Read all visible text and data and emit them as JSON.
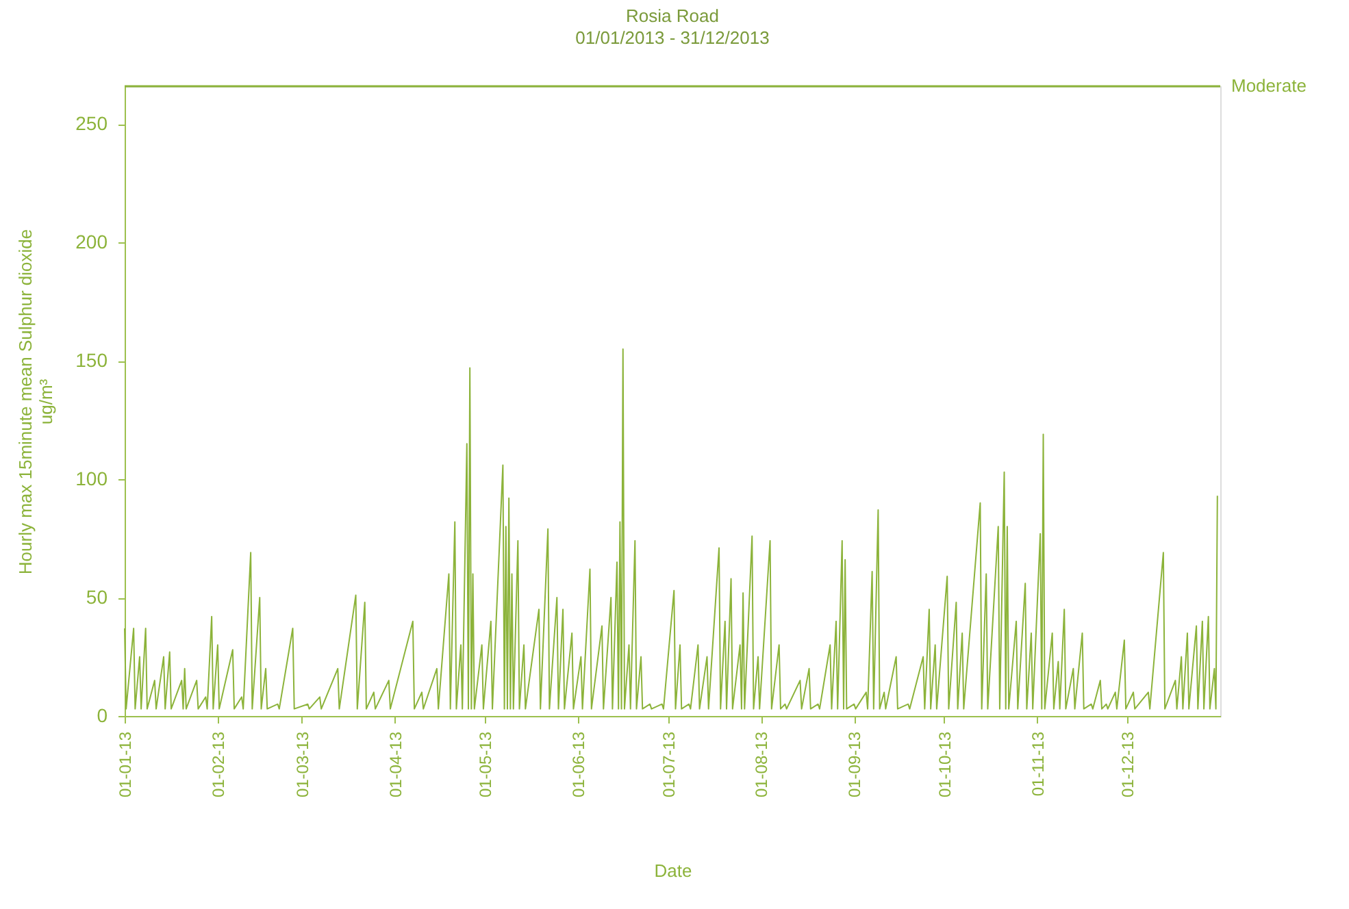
{
  "chart_data": {
    "type": "line",
    "title": "Rosia Road",
    "subtitle": "01/01/2013 - 31/12/2013",
    "xlabel": "Date",
    "ylabel": "Hourly max 15minute mean Sulphur dioxide\nug/m³",
    "xlim": [
      "2013-01-01",
      "2013-12-31T23:00"
    ],
    "ylim": [
      0,
      266
    ],
    "yticks": [
      0,
      50,
      100,
      150,
      200,
      250
    ],
    "xticks": [
      {
        "value": "2013-01-01",
        "label": "01-01-13"
      },
      {
        "value": "2013-02-01",
        "label": "01-02-13"
      },
      {
        "value": "2013-03-01",
        "label": "01-03-13"
      },
      {
        "value": "2013-04-01",
        "label": "01-04-13"
      },
      {
        "value": "2013-05-01",
        "label": "01-05-13"
      },
      {
        "value": "2013-06-01",
        "label": "01-06-13"
      },
      {
        "value": "2013-07-01",
        "label": "01-07-13"
      },
      {
        "value": "2013-08-01",
        "label": "01-08-13"
      },
      {
        "value": "2013-09-01",
        "label": "01-09-13"
      },
      {
        "value": "2013-10-01",
        "label": "01-10-13"
      },
      {
        "value": "2013-11-01",
        "label": "01-11-13"
      },
      {
        "value": "2013-12-01",
        "label": "01-12-13"
      }
    ],
    "grid": false,
    "ref_lines": [
      {
        "axis": "y",
        "value": 266,
        "label": "Moderate",
        "color": "#8cb33a"
      }
    ],
    "x": [
      "2013-01-01",
      "2013-01-01T12:00",
      "2013-01-04",
      "2013-01-04T12:00",
      "2013-01-06",
      "2013-01-06T12:00",
      "2013-01-08",
      "2013-01-08T12:00",
      "2013-01-11",
      "2013-01-11T12:00",
      "2013-01-14",
      "2013-01-14T12:00",
      "2013-01-16",
      "2013-01-16T12:00",
      "2013-01-20",
      "2013-01-20T12:00",
      "2013-01-21",
      "2013-01-21T12:00",
      "2013-01-25",
      "2013-01-25T12:00",
      "2013-01-28",
      "2013-01-28T12:00",
      "2013-01-30",
      "2013-01-30T12:00",
      "2013-02-01",
      "2013-02-01T12:00",
      "2013-02-06",
      "2013-02-06T12:00",
      "2013-02-09",
      "2013-02-09T12:00",
      "2013-02-12",
      "2013-02-12T12:00",
      "2013-02-15",
      "2013-02-15T12:00",
      "2013-02-17",
      "2013-02-17T12:00",
      "2013-02-21",
      "2013-02-21T12:00",
      "2013-02-26",
      "2013-02-26T12:00",
      "2013-03-03",
      "2013-03-03T12:00",
      "2013-03-07",
      "2013-03-07T12:00",
      "2013-03-13",
      "2013-03-13T12:00",
      "2013-03-19",
      "2013-03-19T12:00",
      "2013-03-22",
      "2013-03-22T12:00",
      "2013-03-25",
      "2013-03-25T12:00",
      "2013-03-30",
      "2013-03-30T12:00",
      "2013-04-07",
      "2013-04-07T12:00",
      "2013-04-10",
      "2013-04-10T12:00",
      "2013-04-15",
      "2013-04-15T12:00",
      "2013-04-19",
      "2013-04-19T12:00",
      "2013-04-21",
      "2013-04-21T12:00",
      "2013-04-23",
      "2013-04-23T12:00",
      "2013-04-25",
      "2013-04-25T12:00",
      "2013-04-26",
      "2013-04-26T12:00",
      "2013-04-27",
      "2013-04-27T12:00",
      "2013-04-30",
      "2013-04-30T12:00",
      "2013-05-03",
      "2013-05-03T12:00",
      "2013-05-07",
      "2013-05-07T12:00",
      "2013-05-08",
      "2013-05-08T12:00",
      "2013-05-09",
      "2013-05-09T12:00",
      "2013-05-10",
      "2013-05-10T12:00",
      "2013-05-12",
      "2013-05-12T12:00",
      "2013-05-14",
      "2013-05-14T12:00",
      "2013-05-19",
      "2013-05-19T12:00",
      "2013-05-22",
      "2013-05-22T12:00",
      "2013-05-25",
      "2013-05-25T12:00",
      "2013-05-27",
      "2013-05-27T12:00",
      "2013-05-30",
      "2013-05-30T12:00",
      "2013-06-02",
      "2013-06-02T12:00",
      "2013-06-05",
      "2013-06-05T12:00",
      "2013-06-09",
      "2013-06-09T12:00",
      "2013-06-12",
      "2013-06-12T12:00",
      "2013-06-14",
      "2013-06-14T12:00",
      "2013-06-15",
      "2013-06-15T12:00",
      "2013-06-16",
      "2013-06-16T12:00",
      "2013-06-18",
      "2013-06-18T12:00",
      "2013-06-20",
      "2013-06-20T12:00",
      "2013-06-22",
      "2013-06-22T12:00",
      "2013-06-25",
      "2013-06-25T12:00",
      "2013-06-29",
      "2013-06-29T12:00",
      "2013-07-03",
      "2013-07-03T12:00",
      "2013-07-05",
      "2013-07-05T12:00",
      "2013-07-08",
      "2013-07-08T12:00",
      "2013-07-11",
      "2013-07-11T12:00",
      "2013-07-14",
      "2013-07-14T12:00",
      "2013-07-18",
      "2013-07-18T12:00",
      "2013-07-20",
      "2013-07-20T12:00",
      "2013-07-22",
      "2013-07-22T12:00",
      "2013-07-25",
      "2013-07-25T12:00",
      "2013-07-26",
      "2013-07-26T12:00",
      "2013-07-29",
      "2013-07-29T12:00",
      "2013-07-31",
      "2013-07-31T12:00",
      "2013-08-04",
      "2013-08-04T12:00",
      "2013-08-07",
      "2013-08-07T12:00",
      "2013-08-09",
      "2013-08-09T12:00",
      "2013-08-14",
      "2013-08-14T12:00",
      "2013-08-17",
      "2013-08-17T12:00",
      "2013-08-20",
      "2013-08-20T12:00",
      "2013-08-24",
      "2013-08-24T12:00",
      "2013-08-26",
      "2013-08-26T12:00",
      "2013-08-28",
      "2013-08-28T12:00",
      "2013-08-29",
      "2013-08-29T12:00",
      "2013-09-01",
      "2013-09-01T12:00",
      "2013-09-05",
      "2013-09-05T12:00",
      "2013-09-07",
      "2013-09-07T12:00",
      "2013-09-09",
      "2013-09-09T12:00",
      "2013-09-11",
      "2013-09-11T12:00",
      "2013-09-15",
      "2013-09-15T12:00",
      "2013-09-19",
      "2013-09-19T12:00",
      "2013-09-24",
      "2013-09-24T12:00",
      "2013-09-26",
      "2013-09-26T12:00",
      "2013-09-28",
      "2013-09-28T12:00",
      "2013-10-02",
      "2013-10-02T12:00",
      "2013-10-05",
      "2013-10-05T12:00",
      "2013-10-07",
      "2013-10-07T12:00",
      "2013-10-13",
      "2013-10-13T12:00",
      "2013-10-15",
      "2013-10-15T12:00",
      "2013-10-19",
      "2013-10-19T12:00",
      "2013-10-21",
      "2013-10-21T12:00",
      "2013-10-22",
      "2013-10-22T12:00",
      "2013-10-25",
      "2013-10-25T12:00",
      "2013-10-28",
      "2013-10-28T12:00",
      "2013-10-30",
      "2013-10-30T12:00",
      "2013-11-02",
      "2013-11-02T12:00",
      "2013-11-03",
      "2013-11-03T12:00",
      "2013-11-06",
      "2013-11-06T12:00",
      "2013-11-08",
      "2013-11-08T12:00",
      "2013-11-10",
      "2013-11-10T12:00",
      "2013-11-13",
      "2013-11-13T12:00",
      "2013-11-16",
      "2013-11-16T12:00",
      "2013-11-19",
      "2013-11-19T12:00",
      "2013-11-22",
      "2013-11-22T12:00",
      "2013-11-24",
      "2013-11-24T12:00",
      "2013-11-27",
      "2013-11-27T12:00",
      "2013-11-30",
      "2013-11-30T12:00",
      "2013-12-03",
      "2013-12-03T12:00",
      "2013-12-08",
      "2013-12-08T12:00",
      "2013-12-13",
      "2013-12-13T12:00",
      "2013-12-17",
      "2013-12-17T12:00",
      "2013-12-19",
      "2013-12-19T12:00",
      "2013-12-21",
      "2013-12-21T12:00",
      "2013-12-24",
      "2013-12-24T12:00",
      "2013-12-26",
      "2013-12-26T12:00",
      "2013-12-28",
      "2013-12-28T12:00",
      "2013-12-30",
      "2013-12-30T12:00",
      "2013-12-31"
    ],
    "series": [
      {
        "color": "#8cb33a",
        "values": [
          37,
          3,
          37,
          3,
          25,
          3,
          37,
          3,
          15,
          3,
          25,
          3,
          27,
          3,
          15,
          3,
          20,
          3,
          15,
          3,
          8,
          3,
          42,
          3,
          30,
          3,
          28,
          3,
          8,
          3,
          69,
          3,
          50,
          3,
          20,
          3,
          5,
          3,
          37,
          3,
          5,
          3,
          8,
          3,
          20,
          3,
          51,
          3,
          48,
          3,
          10,
          3,
          15,
          3,
          40,
          3,
          10,
          3,
          20,
          3,
          60,
          3,
          82,
          3,
          30,
          3,
          115,
          3,
          147,
          3,
          60,
          3,
          30,
          3,
          40,
          3,
          106,
          3,
          80,
          3,
          92,
          3,
          60,
          3,
          74,
          3,
          30,
          3,
          45,
          3,
          79,
          3,
          50,
          3,
          45,
          3,
          35,
          3,
          25,
          3,
          62,
          3,
          38,
          3,
          50,
          3,
          65,
          3,
          82,
          3,
          155,
          3,
          30,
          3,
          74,
          3,
          25,
          3,
          5,
          3,
          5,
          3,
          53,
          3,
          30,
          3,
          5,
          3,
          30,
          3,
          25,
          3,
          71,
          3,
          40,
          3,
          58,
          3,
          30,
          3,
          52,
          3,
          76,
          3,
          25,
          3,
          74,
          3,
          30,
          3,
          5,
          3,
          15,
          3,
          20,
          3,
          5,
          3,
          30,
          3,
          40,
          3,
          74,
          3,
          66,
          3,
          5,
          3,
          10,
          3,
          61,
          3,
          87,
          3,
          10,
          3,
          25,
          3,
          5,
          3,
          25,
          3,
          45,
          3,
          30,
          3,
          59,
          3,
          48,
          3,
          35,
          3,
          90,
          3,
          60,
          3,
          80,
          3,
          103,
          3,
          80,
          3,
          40,
          3,
          56,
          3,
          35,
          3,
          77,
          3,
          119,
          3,
          35,
          3,
          23,
          3,
          45,
          3,
          20,
          3,
          35,
          3,
          5,
          3,
          15,
          3,
          5,
          3,
          10,
          3,
          32,
          3,
          10,
          3,
          10,
          3,
          69,
          3,
          15,
          3,
          25,
          3,
          35,
          3,
          38,
          3,
          40,
          3,
          42,
          3,
          20,
          3,
          93
        ]
      }
    ]
  }
}
